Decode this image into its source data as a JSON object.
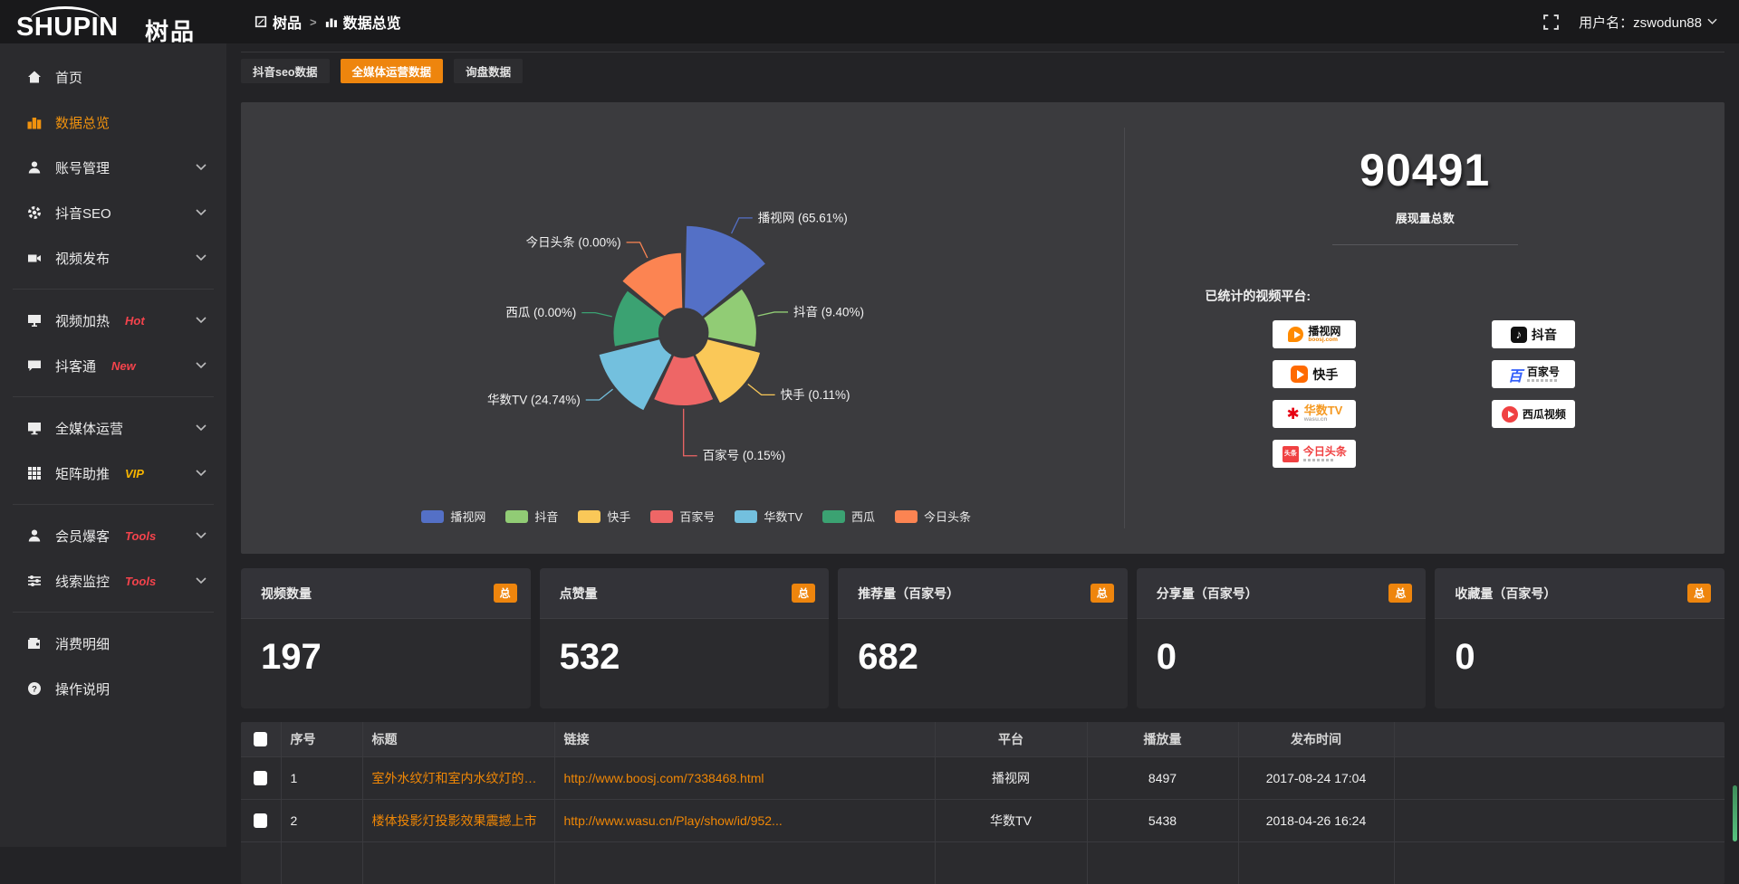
{
  "colors": {
    "accent_orange": "#ee850d",
    "sidebar_active": "#f0920e",
    "badge_red": "#f4434c",
    "badge_vip": "#f7b500",
    "link_orange": "#f08705",
    "panel_bg": "#3b3b3e"
  },
  "header": {
    "logo_en": "SHUPIN",
    "logo_cn": "树品",
    "breadcrumb_root": "树品",
    "breadcrumb_sep": ">",
    "breadcrumb_current": "数据总览",
    "user_label": "用户名：zswodun88"
  },
  "sidebar": {
    "items": [
      {
        "label": "首页"
      },
      {
        "label": "数据总览"
      },
      {
        "label": "账号管理"
      },
      {
        "label": "抖音SEO"
      },
      {
        "label": "视频发布"
      },
      {
        "label": "视频加热",
        "badge": "Hot"
      },
      {
        "label": "抖客通",
        "badge": "New"
      },
      {
        "label": "全媒体运营"
      },
      {
        "label": "矩阵助推",
        "badge": "VIP"
      },
      {
        "label": "会员爆客",
        "badge": "Tools"
      },
      {
        "label": "线索监控",
        "badge": "Tools"
      },
      {
        "label": "消费明细"
      },
      {
        "label": "操作说明"
      }
    ]
  },
  "tabs": [
    {
      "label": "抖音seo数据"
    },
    {
      "label": "全媒体运营数据"
    },
    {
      "label": "询盘数据"
    }
  ],
  "chart_data": {
    "type": "pie",
    "variant": "nightingale-rose",
    "equal_angles": true,
    "start_from_top_clockwise": true,
    "inner_radius_px": 27,
    "legend_position": "bottom",
    "slices": [
      {
        "name": "播视网",
        "percent": 65.61,
        "color": "#5470c6",
        "radius_px": 119
      },
      {
        "name": "抖音",
        "percent": 9.4,
        "color": "#91cc75",
        "radius_px": 81
      },
      {
        "name": "快手",
        "percent": 0.11,
        "color": "#fac858",
        "radius_px": 88
      },
      {
        "name": "百家号",
        "percent": 0.15,
        "color": "#ee6666",
        "radius_px": 81
      },
      {
        "name": "华数TV",
        "percent": 24.74,
        "color": "#73c0de",
        "radius_px": 97
      },
      {
        "name": "西瓜",
        "percent": 0.0,
        "color": "#3ba272",
        "radius_px": 78
      },
      {
        "name": "今日头条",
        "percent": 0.0,
        "color": "#fc8452",
        "radius_px": 89
      }
    ]
  },
  "summary": {
    "total_value": "90491",
    "total_label": "展现量总数",
    "platforms_label": "已统计的视频平台:",
    "platforms": [
      {
        "id": "boosj",
        "name": "播视网",
        "sub": "boosj.com"
      },
      {
        "id": "kuaishou",
        "name": "快手"
      },
      {
        "id": "wasu",
        "name": "华数TV",
        "sub": "wasu.cn"
      },
      {
        "id": "toutiao",
        "name": "今日头条",
        "icon_text": "头条"
      },
      {
        "id": "douyin",
        "name": "抖音",
        "icon_text": "♪"
      },
      {
        "id": "baijiahao",
        "name": "百家号",
        "icon_text": "百"
      },
      {
        "id": "xigua",
        "name": "西瓜视频"
      }
    ]
  },
  "stats_cards": [
    {
      "label": "视频数量",
      "badge": "总",
      "value": "197"
    },
    {
      "label": "点赞量",
      "badge": "总",
      "value": "532"
    },
    {
      "label": "推荐量（百家号）",
      "badge": "总",
      "value": "682"
    },
    {
      "label": "分享量（百家号）",
      "badge": "总",
      "value": "0"
    },
    {
      "label": "收藏量（百家号）",
      "badge": "总",
      "value": "0"
    }
  ],
  "table": {
    "headers": {
      "seq": "序号",
      "title": "标题",
      "link": "链接",
      "platform": "平台",
      "plays": "播放量",
      "time": "发布时间"
    },
    "rows": [
      {
        "seq": "1",
        "title": "室外水纹灯和室内水纹灯的区别和简介",
        "link": "http://www.boosj.com/7338468.html",
        "platform": "播视网",
        "plays": "8497",
        "time": "2017-08-24 17:04"
      },
      {
        "seq": "2",
        "title": "楼体投影灯投影效果震撼上市",
        "link": "http://www.wasu.cn/Play/show/id/952...",
        "platform": "华数TV",
        "plays": "5438",
        "time": "2018-04-26 16:24"
      }
    ]
  }
}
